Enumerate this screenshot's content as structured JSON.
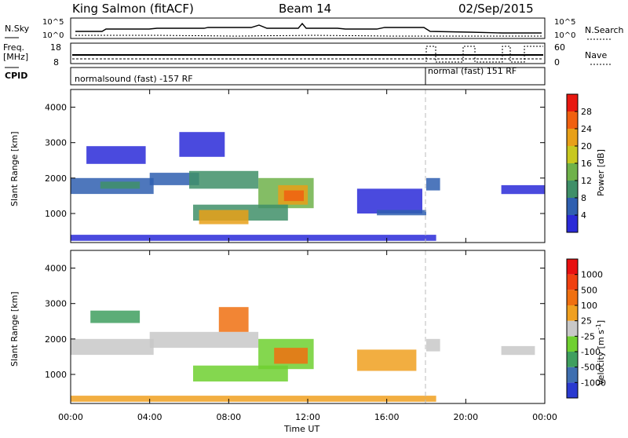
{
  "header": {
    "station": "King Salmon (fitACF)",
    "beam": "Beam 14",
    "date": "02/Sep/2015"
  },
  "left_labels": {
    "nsky": "N.Sky",
    "freq": "Freq.",
    "mhz": "[MHz]",
    "cpid": "CPID"
  },
  "right_labels": {
    "nsearch": "N.Search",
    "nave": "Nave"
  },
  "noise_axis": {
    "top": "10^5",
    "bottom": "10^0"
  },
  "freq_axis": {
    "top": "18",
    "bottom": "8"
  },
  "nave_axis": {
    "top": "60",
    "bottom": "0"
  },
  "cpid_modes": [
    {
      "label": "normalsound (fast) -157 RF",
      "start_hour": 0,
      "end_hour": 18
    },
    {
      "label": "normal (fast) 151 RF",
      "start_hour": 18,
      "end_hour": 24
    }
  ],
  "power_colorbar": {
    "label": "Power [dB]",
    "ticks": [
      "4",
      "8",
      "12",
      "16",
      "20",
      "24",
      "28"
    ],
    "colors": [
      "#2a2ad8",
      "#2f5fb0",
      "#3f8f68",
      "#6fb24a",
      "#c8c820",
      "#e8a018",
      "#f06010",
      "#e81810"
    ]
  },
  "velocity_colorbar": {
    "label_main": "Velocity [m s",
    "label_sup": "-1",
    "label_end": "]",
    "ticks": [
      "1000",
      "500",
      "100",
      "25",
      "-25",
      "-100",
      "-500",
      "-1000"
    ],
    "colors": [
      "#2a3ad0",
      "#3f6fb0",
      "#3f9f5f",
      "#6fd030",
      "#c8c8c8",
      "#f0a020",
      "#f07010",
      "#f04010",
      "#e81010"
    ]
  },
  "chart_data": [
    {
      "type": "heatmap",
      "title": "",
      "parameter": "Power",
      "ylabel": "Slant Range [km]",
      "xlabel": "",
      "xlim": [
        0,
        24
      ],
      "ylim": [
        180,
        4500
      ],
      "y_ticks": [
        "1000",
        "2000",
        "3000",
        "4000"
      ],
      "y_tick_values": [
        1000,
        2000,
        3000,
        4000
      ],
      "grid": false,
      "regions": [
        {
          "t0": 0.0,
          "t1": 4.2,
          "r0": 1550,
          "r1": 2000,
          "color": "#2f5fb0"
        },
        {
          "t0": 1.5,
          "t1": 3.5,
          "r0": 1700,
          "r1": 1900,
          "color": "#3f8f68"
        },
        {
          "t0": 4.0,
          "t1": 6.5,
          "r0": 1800,
          "r1": 2150,
          "color": "#2f5fb0"
        },
        {
          "t0": 6.0,
          "t1": 9.5,
          "r0": 1700,
          "r1": 2200,
          "color": "#3f8f68"
        },
        {
          "t0": 9.5,
          "t1": 12.3,
          "r0": 1150,
          "r1": 2000,
          "color": "#6fb24a"
        },
        {
          "t0": 10.5,
          "t1": 12.0,
          "r0": 1250,
          "r1": 1800,
          "color": "#e8a018"
        },
        {
          "t0": 10.8,
          "t1": 11.8,
          "r0": 1350,
          "r1": 1650,
          "color": "#f06010"
        },
        {
          "t0": 6.2,
          "t1": 11.0,
          "r0": 800,
          "r1": 1250,
          "color": "#3f8f68"
        },
        {
          "t0": 6.5,
          "t1": 9.0,
          "r0": 700,
          "r1": 1100,
          "color": "#e8a018"
        },
        {
          "t0": 0.8,
          "t1": 3.8,
          "r0": 2400,
          "r1": 2900,
          "color": "#2a2ad8"
        },
        {
          "t0": 5.5,
          "t1": 7.8,
          "r0": 2600,
          "r1": 3300,
          "color": "#2a2ad8"
        },
        {
          "t0": 14.5,
          "t1": 17.8,
          "r0": 1000,
          "r1": 1700,
          "color": "#2a2ad8"
        },
        {
          "t0": 15.5,
          "t1": 18.0,
          "r0": 950,
          "r1": 1100,
          "color": "#2f5fb0"
        },
        {
          "t0": 18.0,
          "t1": 18.7,
          "r0": 1650,
          "r1": 2000,
          "color": "#2f5fb0"
        },
        {
          "t0": 21.8,
          "t1": 24.0,
          "r0": 1550,
          "r1": 1800,
          "color": "#2a2ad8"
        },
        {
          "t0": 0.0,
          "t1": 18.5,
          "r0": 230,
          "r1": 400,
          "color": "#2a2ad8"
        }
      ]
    },
    {
      "type": "heatmap",
      "title": "",
      "parameter": "Velocity",
      "ylabel": "Slant Range [km]",
      "xlabel": "Time UT",
      "xlim": [
        0,
        24
      ],
      "ylim": [
        180,
        4500
      ],
      "x_ticks": [
        "00:00",
        "04:00",
        "08:00",
        "12:00",
        "16:00",
        "20:00",
        "00:00"
      ],
      "x_tick_values": [
        0,
        4,
        8,
        12,
        16,
        20,
        24
      ],
      "y_ticks": [
        "1000",
        "2000",
        "3000",
        "4000"
      ],
      "y_tick_values": [
        1000,
        2000,
        3000,
        4000
      ],
      "grid": false,
      "regions": [
        {
          "t0": 0.0,
          "t1": 4.2,
          "r0": 1550,
          "r1": 2000,
          "color": "#c8c8c8"
        },
        {
          "t0": 4.0,
          "t1": 9.5,
          "r0": 1750,
          "r1": 2200,
          "color": "#c8c8c8"
        },
        {
          "t0": 9.5,
          "t1": 12.3,
          "r0": 1150,
          "r1": 2000,
          "color": "#6fd030"
        },
        {
          "t0": 10.3,
          "t1": 12.0,
          "r0": 1300,
          "r1": 1750,
          "color": "#f07010"
        },
        {
          "t0": 6.2,
          "t1": 11.0,
          "r0": 800,
          "r1": 1250,
          "color": "#6fd030"
        },
        {
          "t0": 7.5,
          "t1": 9.0,
          "r0": 2200,
          "r1": 2900,
          "color": "#f07010"
        },
        {
          "t0": 1.0,
          "t1": 3.5,
          "r0": 2450,
          "r1": 2800,
          "color": "#3f9f5f"
        },
        {
          "t0": 14.5,
          "t1": 17.5,
          "r0": 1100,
          "r1": 1700,
          "color": "#f0a020"
        },
        {
          "t0": 18.0,
          "t1": 18.7,
          "r0": 1650,
          "r1": 2000,
          "color": "#c8c8c8"
        },
        {
          "t0": 21.8,
          "t1": 23.5,
          "r0": 1550,
          "r1": 1800,
          "color": "#c8c8c8"
        },
        {
          "t0": 0.0,
          "t1": 18.5,
          "r0": 230,
          "r1": 400,
          "color": "#f0a020"
        }
      ]
    }
  ]
}
